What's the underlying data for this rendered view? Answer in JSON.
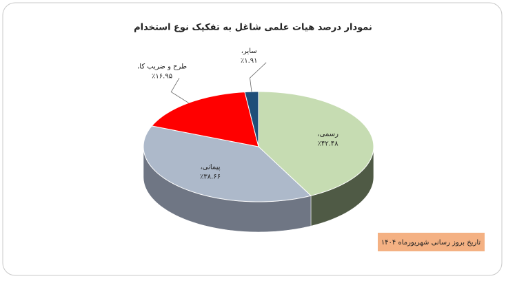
{
  "chart_data": {
    "type": "pie3d",
    "title": "نمودار درصد هیات علمی شاغل به تفکیک نوع استخدام",
    "categories": [
      "رسمی،",
      "پیمانی،",
      "طرح و ضریب کا،",
      "سایر،"
    ],
    "values": [
      42.48,
      38.66,
      16.95,
      1.91
    ],
    "value_labels": [
      "٪۴۲.۴۸",
      "٪۳۸.۶۶",
      "٪۱۶.۹۵",
      "٪۱.۹۱"
    ],
    "colors": [
      "#c6dcb2",
      "#adb9ca",
      "#ff0000",
      "#1f4e79"
    ],
    "side_colors": [
      "#4f5a45",
      "#6f7684",
      "#b00000",
      "#142f4a"
    ],
    "note": "تاریخ بروز رسانی شهریورماه ۱۴۰۴"
  }
}
